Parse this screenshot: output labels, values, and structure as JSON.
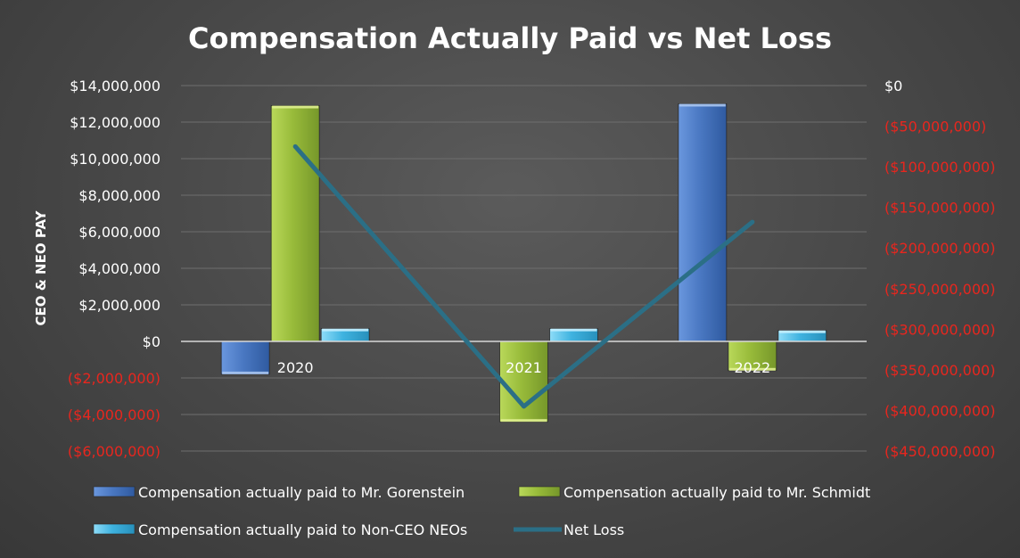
{
  "chart_data": {
    "type": "bar",
    "title": "Compensation Actually Paid vs Net Loss",
    "ylabel": "CEO & NEO PAY",
    "categories": [
      "2020",
      "2021",
      "2022"
    ],
    "ylim": [
      -6000000,
      14000000
    ],
    "y2lim": [
      -450000000,
      0
    ],
    "left_ticks": [
      {
        "value": 14000000,
        "label": "$14,000,000"
      },
      {
        "value": 12000000,
        "label": "$12,000,000"
      },
      {
        "value": 10000000,
        "label": "$10,000,000"
      },
      {
        "value": 8000000,
        "label": "$8,000,000"
      },
      {
        "value": 6000000,
        "label": "$6,000,000"
      },
      {
        "value": 4000000,
        "label": "$4,000,000"
      },
      {
        "value": 2000000,
        "label": "$2,000,000"
      },
      {
        "value": 0,
        "label": "$0"
      },
      {
        "value": -2000000,
        "label": "($2,000,000)"
      },
      {
        "value": -4000000,
        "label": "($4,000,000)"
      },
      {
        "value": -6000000,
        "label": "($6,000,000)"
      }
    ],
    "right_ticks": [
      {
        "value": 0,
        "label": "$0"
      },
      {
        "value": -50000000,
        "label": "($50,000,000)"
      },
      {
        "value": -100000000,
        "label": "($100,000,000)"
      },
      {
        "value": -150000000,
        "label": "($150,000,000)"
      },
      {
        "value": -200000000,
        "label": "($200,000,000)"
      },
      {
        "value": -250000000,
        "label": "($250,000,000)"
      },
      {
        "value": -300000000,
        "label": "($300,000,000)"
      },
      {
        "value": -350000000,
        "label": "($350,000,000)"
      },
      {
        "value": -400000000,
        "label": "($400,000,000)"
      },
      {
        "value": -450000000,
        "label": "($450,000,000)"
      }
    ],
    "series": [
      {
        "name": "Compensation actually paid to Mr. Gorenstein",
        "type": "bar",
        "axis": "left",
        "color": "#4a78c2",
        "values": [
          -1800000,
          null,
          13000000
        ]
      },
      {
        "name": "Compensation actually paid to Mr. Schmidt",
        "type": "bar",
        "axis": "left",
        "color": "#98bb3a",
        "values": [
          12900000,
          -4400000,
          -1600000
        ]
      },
      {
        "name": "Compensation actually paid to Non-CEO NEOs",
        "type": "bar",
        "axis": "left",
        "color": "#3fb3e0",
        "values": [
          700000,
          700000,
          600000
        ]
      },
      {
        "name": "Net Loss",
        "type": "line",
        "axis": "right",
        "color": "#2b6f86",
        "values": [
          -75000000,
          -395000000,
          -168000000
        ]
      }
    ],
    "colors": {
      "positive_tick": "#ffffff",
      "negative_tick": "#e8261e",
      "grid": "#6e6e6e",
      "zero_line": "#d8d8d8"
    },
    "grid": true,
    "legend_position": "bottom"
  }
}
